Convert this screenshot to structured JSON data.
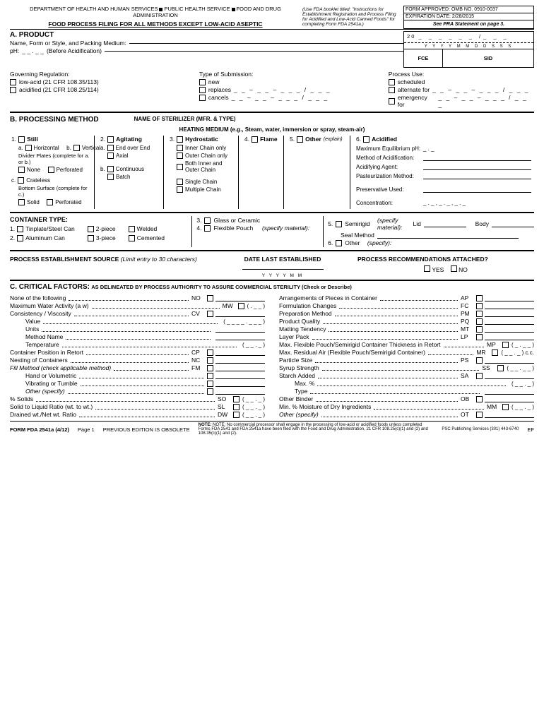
{
  "header": {
    "dept": "DEPARTMENT OF HEALTH AND HUMAN SERVICES",
    "phs": "PUBLIC HEALTH SERVICE",
    "fda": "FOOD AND DRUG ADMINISTRATION",
    "title": "FOOD PROCESS FILING FOR ALL METHODS EXCEPT LOW-ACID ASEPTIC",
    "booklet": "(Use FDA booklet titled: \"Instructions for Establishment Registration and Process Filing for Acidified and Low-Acid Canned Foods\" for completing Form FDA 2541a.)",
    "omb": "FORM APPROVED: OMB NO. 0910-0037",
    "exp": "EXPIRATION DATE: 2/28/2015",
    "pra": "See PRA Statement on page 3."
  },
  "fce": {
    "twenty": "2 0",
    "yyyy": "Y Y Y Y   M M   D D   S S S",
    "fce": "FCE",
    "sid": "SID"
  },
  "secA": {
    "h": "A. PRODUCT",
    "name": "Name, Form or Style, and Packing Medium:",
    "ph": "pH:",
    "phdash": "_ _ . _ _",
    "before": "(Before Acidification)",
    "gov": "Governing Regulation:",
    "low": "low-acid (21 CFR 108.35/113)",
    "acid": "acidified (21 CFR 108.25/114)",
    "type": "Type of Submission:",
    "new": "new",
    "replaces": "replaces",
    "cancels": "cancels",
    "dash1": "_ _ – _ _ – _ _ _ / _ _ _",
    "use": "Process Use:",
    "sched": "scheduled",
    "alt": "alternate for",
    "emerg": "emergency for",
    "dash2": "_ _ – _ _ – _ _ _ / _ _ _"
  },
  "secB": {
    "h": "B. PROCESSING METHOD",
    "ster": "NAME OF STERILIZER (MFR. & TYPE)",
    "heat": "HEATING MEDIUM (e.g., Steam, water, immersion or spray, steam-air)",
    "c1": {
      "n": "1.",
      "t": "Still",
      "ha": "a.",
      "h": "Horizontal",
      "hb": "b.",
      "v": "Vertical",
      "div": "Divider Plates (complete for a. or b.)",
      "none": "None",
      "perf": "Perforated",
      "cn": "c.",
      "crate": "Crateless",
      "bot": "Bottom Surface (complete for c.)",
      "solid": "Solid"
    },
    "c2": {
      "n": "2.",
      "t": "Agitating",
      "a": "a.",
      "eoe": "End over End",
      "ax": "Axial",
      "b": "b.",
      "cont": "Continuous",
      "batch": "Batch"
    },
    "c3": {
      "n": "3.",
      "t": "Hydrostatic",
      "ic": "Inner Chain only",
      "oc": "Outer Chain only",
      "bio": "Both Inner and Outer Chain",
      "sc": "Single Chain",
      "mc": "Multiple Chain"
    },
    "c4": {
      "n": "4.",
      "t": "Flame"
    },
    "c5": {
      "n": "5.",
      "t": "Other",
      "exp": "(explain)"
    },
    "c6": {
      "n": "6.",
      "t": "Acidified",
      "meq": "Maximum Equilibrium pH:",
      "meqv": "_ . _",
      "moa": "Method of Acidification:",
      "aa": "Acidifying Agent:",
      "pm": "Pasteurization Method:",
      "pu": "Preservative Used:",
      "conc": "Concentration:",
      "concv": "_ . _ ,  _ . _ ,  _ . _"
    }
  },
  "cont": {
    "h": "CONTAINER TYPE:",
    "l": {
      "n1": "1.",
      "tin": "Tinplate/Steel Can",
      "n2": "2.",
      "al": "Aluminum Can",
      "2p": "2-piece",
      "3p": "3-piece",
      "w": "Welded",
      "c": "Cemented"
    },
    "m": {
      "n3": "3.",
      "glass": "Glass or Ceramic",
      "n4": "4.",
      "fp": "Flexible Pouch",
      "sm": "(specify material):"
    },
    "r": {
      "n5": "5.",
      "semi": "Semirigid",
      "spec": "(specify material):",
      "lid": "Lid",
      "body": "Body",
      "seal": "Seal Method",
      "n6": "6.",
      "oth": "Other",
      "os": "(specify):"
    }
  },
  "src": {
    "h1": "PROCESS ESTABLISHMENT SOURCE",
    "h1i": "(Limit entry to 30 characters)",
    "h2": "DATE LAST ESTABLISHED",
    "y": "Y  Y  Y  Y     M  M",
    "h3": "PROCESS RECOMMENDATIONS ATTACHED?",
    "yes": "YES",
    "no": "NO"
  },
  "secC": {
    "h": "C. CRITICAL FACTORS:",
    "sub": "AS DELINEATED BY PROCESS AUTHORITY TO ASSURE COMMERCIAL STERILITY (Check or Describe)",
    "left": [
      {
        "l": "None of the following",
        "c": "NO"
      },
      {
        "l": "Maximum Water Activity (a",
        "sub": "w",
        "l2": ")",
        "c": "MW",
        "v": "( . _ _ )"
      },
      {
        "l": "Consistency / Viscosity",
        "c": "CV"
      },
      {
        "l": "Value",
        "i": 1,
        "v": "( _ _ _ _ . _ _ _ )"
      },
      {
        "l": "Units",
        "i": 1
      },
      {
        "l": "Method Name",
        "i": 1
      },
      {
        "l": "Temperature",
        "i": 1,
        "v": "( _ _ . _ )"
      },
      {
        "l": "Container Position in Retort",
        "c": "CP"
      },
      {
        "l": "Nesting of Containers",
        "c": "NC"
      },
      {
        "l": "Fill Method (check applicable method)",
        "c": "FM",
        "it": 1
      },
      {
        "l": "Hand or Volumetric",
        "i": 1,
        "cb": 1
      },
      {
        "l": "Vibrating or Tumble",
        "i": 1,
        "cb": 1
      },
      {
        "l": "Other (specify)",
        "i": 1,
        "cb": 1,
        "it": 1
      },
      {
        "l": "% Solids",
        "c": "SO",
        "v": "( _ _ . _ )"
      },
      {
        "l": "Solid to Liquid Ratio (wt. to wt.)",
        "c": "SL",
        "v": "( _ _ . _ )"
      },
      {
        "l": "Drained wt./Net wt. Ratio",
        "c": "DW",
        "v": "( _ _ . _ )"
      }
    ],
    "right": [
      {
        "l": "Arrangements of Pieces in Container",
        "c": "AP"
      },
      {
        "l": "Formulation Changes",
        "c": "FC"
      },
      {
        "l": "Preparation Method",
        "c": "PM"
      },
      {
        "l": "Product Quality",
        "c": "PQ"
      },
      {
        "l": "Matting Tendency",
        "c": "MT"
      },
      {
        "l": "Layer Pack",
        "c": "LP"
      },
      {
        "l": "Max. Flexible Pouch/Semirigid Container Thickness in Retort",
        "c": "MP",
        "v": "( _ . _ _ )"
      },
      {
        "l": "Max. Residual Air (Flexible Pouch/Semirigid Container)",
        "c": "MR",
        "v": "( _ _ . _ ) c.c."
      },
      {
        "l": "Particle Size",
        "c": "PS"
      },
      {
        "l": "Syrup Strength",
        "c": "SS",
        "v": "( _ _ . _ _ )"
      },
      {
        "l": "Starch Added",
        "c": "SA"
      },
      {
        "l": "Max. %",
        "i": 1,
        "v": "( _ _ . _ )"
      },
      {
        "l": "Type",
        "i": 1
      },
      {
        "l": "Other Binder",
        "c": "OB"
      },
      {
        "l": "Min. % Moisture of Dry Ingredients",
        "c": "MM",
        "v": "( _ _ . _ )"
      },
      {
        "l": "Other (specify)",
        "c": "OT",
        "it": 1
      }
    ]
  },
  "ftr": {
    "form": "FORM FDA 2541a (4/12)",
    "pg": "Page 1",
    "prev": "PREVIOUS EDITION IS OBSOLETE",
    "note": "NOTE: No commercial processor shall engage in the processing of low-acid or acidified foods unless completed Forms FDA 2541 and FDA 2541a have been filed with the Food and Drug Administration, 21 CFR 108.25(c)(1) and (2) and 108.35(c)(1) and (2).",
    "psc": "PSC Publishing Services (301) 443-6740",
    "ef": "EF"
  }
}
